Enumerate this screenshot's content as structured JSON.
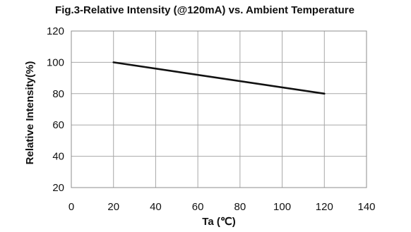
{
  "chart_data": {
    "type": "line",
    "title": "Fig.3-Relative Intensity (@120mA) vs. Ambient Temperature",
    "xlabel": "Ta (℃)",
    "ylabel": "Relative Intensity(%)",
    "xlim": [
      0,
      140
    ],
    "ylim": [
      20,
      120
    ],
    "xticks": [
      0,
      20,
      40,
      60,
      80,
      100,
      120,
      140
    ],
    "yticks": [
      20,
      40,
      60,
      80,
      100,
      120
    ],
    "grid": true,
    "series": [
      {
        "x": [
          20,
          120
        ],
        "y": [
          100,
          80
        ],
        "color": "#111111"
      }
    ]
  }
}
